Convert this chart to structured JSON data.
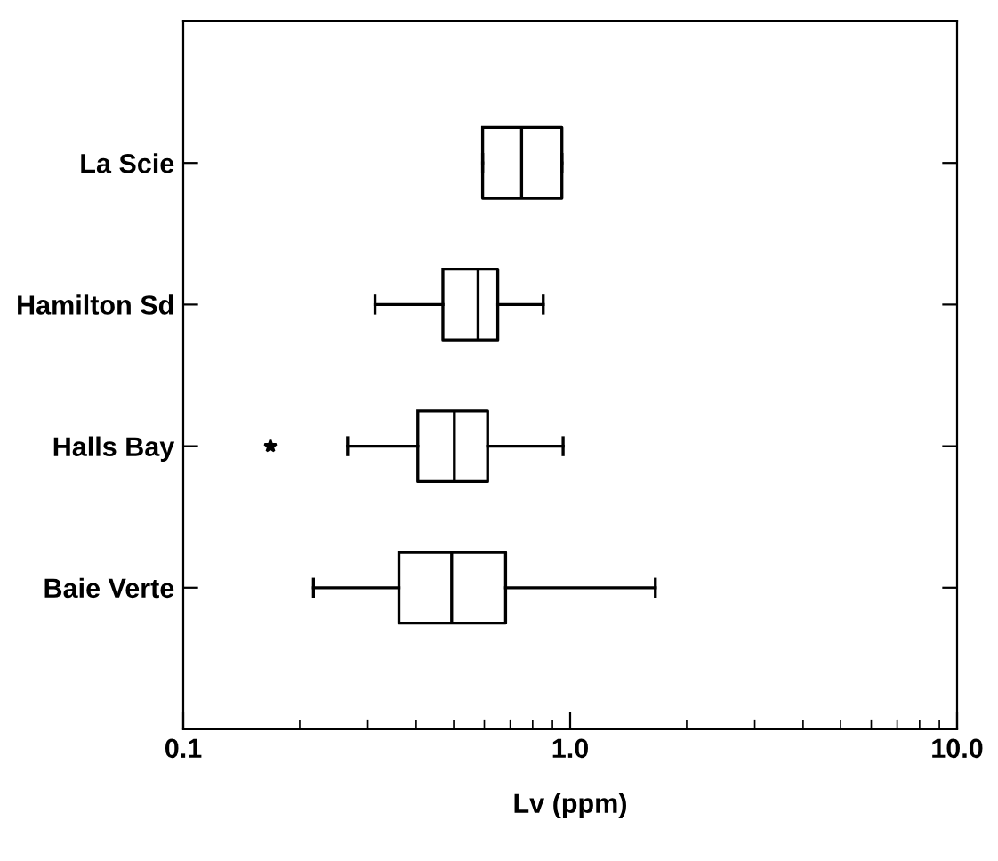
{
  "chart_data": {
    "type": "box",
    "orientation": "horizontal",
    "xlabel": "Lv (ppm)",
    "log": "x",
    "categories": [
      "La Scie",
      "Hamilton Sd",
      "Halls Bay",
      "Baie Verte"
    ],
    "boxes": [
      {
        "low": 0.594,
        "q1": 0.594,
        "median": 0.749,
        "q3": 0.952,
        "high": 0.952
      },
      {
        "low": 0.313,
        "q1": 0.469,
        "median": 0.578,
        "q3": 0.65,
        "high": 0.852
      },
      {
        "low": 0.266,
        "q1": 0.404,
        "median": 0.502,
        "q3": 0.612,
        "high": 0.959,
        "outliers": [
          0.168
        ]
      },
      {
        "low": 0.217,
        "q1": 0.361,
        "median": 0.494,
        "q3": 0.681,
        "high": 1.66
      }
    ],
    "color": "#000000",
    "xlim": [
      0.1,
      10
    ],
    "xticks": [
      {
        "value": 0.1,
        "label": "0.1"
      },
      {
        "value": 1,
        "label": "1.0"
      },
      {
        "value": 10,
        "label": "10.0"
      }
    ],
    "grid": false
  }
}
